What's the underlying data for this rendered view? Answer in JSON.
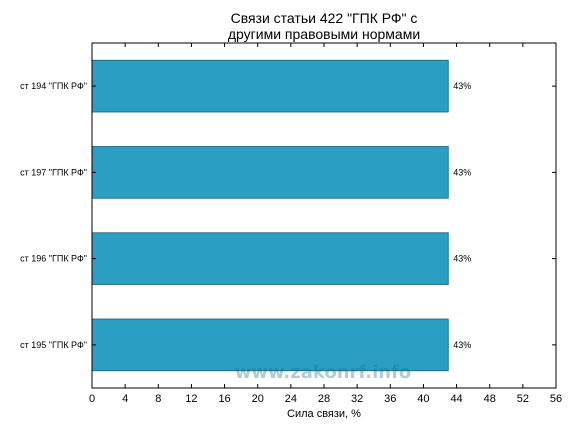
{
  "chart_data": {
    "type": "bar",
    "orientation": "horizontal",
    "title": "Связи статьи 422 \"ГПК РФ\" с\nдругими правовыми нормами",
    "title_lines": [
      "Связи статьи 422 \"ГПК РФ\" с",
      "другими правовыми нормами"
    ],
    "categories": [
      "ст 194 \"ГПК РФ\"",
      "ст 197 \"ГПК РФ\"",
      "ст 196 \"ГПК РФ\"",
      "ст 195 \"ГПК РФ\""
    ],
    "values": [
      43,
      43,
      43,
      43
    ],
    "data_labels": [
      "43%",
      "43%",
      "43%",
      "43%"
    ],
    "xlabel": "Сила связи, %",
    "ylabel": "",
    "xlim": [
      0,
      56
    ],
    "xticks": [
      0,
      4,
      8,
      12,
      16,
      20,
      24,
      28,
      32,
      36,
      40,
      44,
      48,
      52,
      56
    ],
    "grid": false,
    "bar_color": "#2a9fc3",
    "bar_edge_color": "#1a5f75",
    "watermark": "www.zakonrf.info"
  }
}
